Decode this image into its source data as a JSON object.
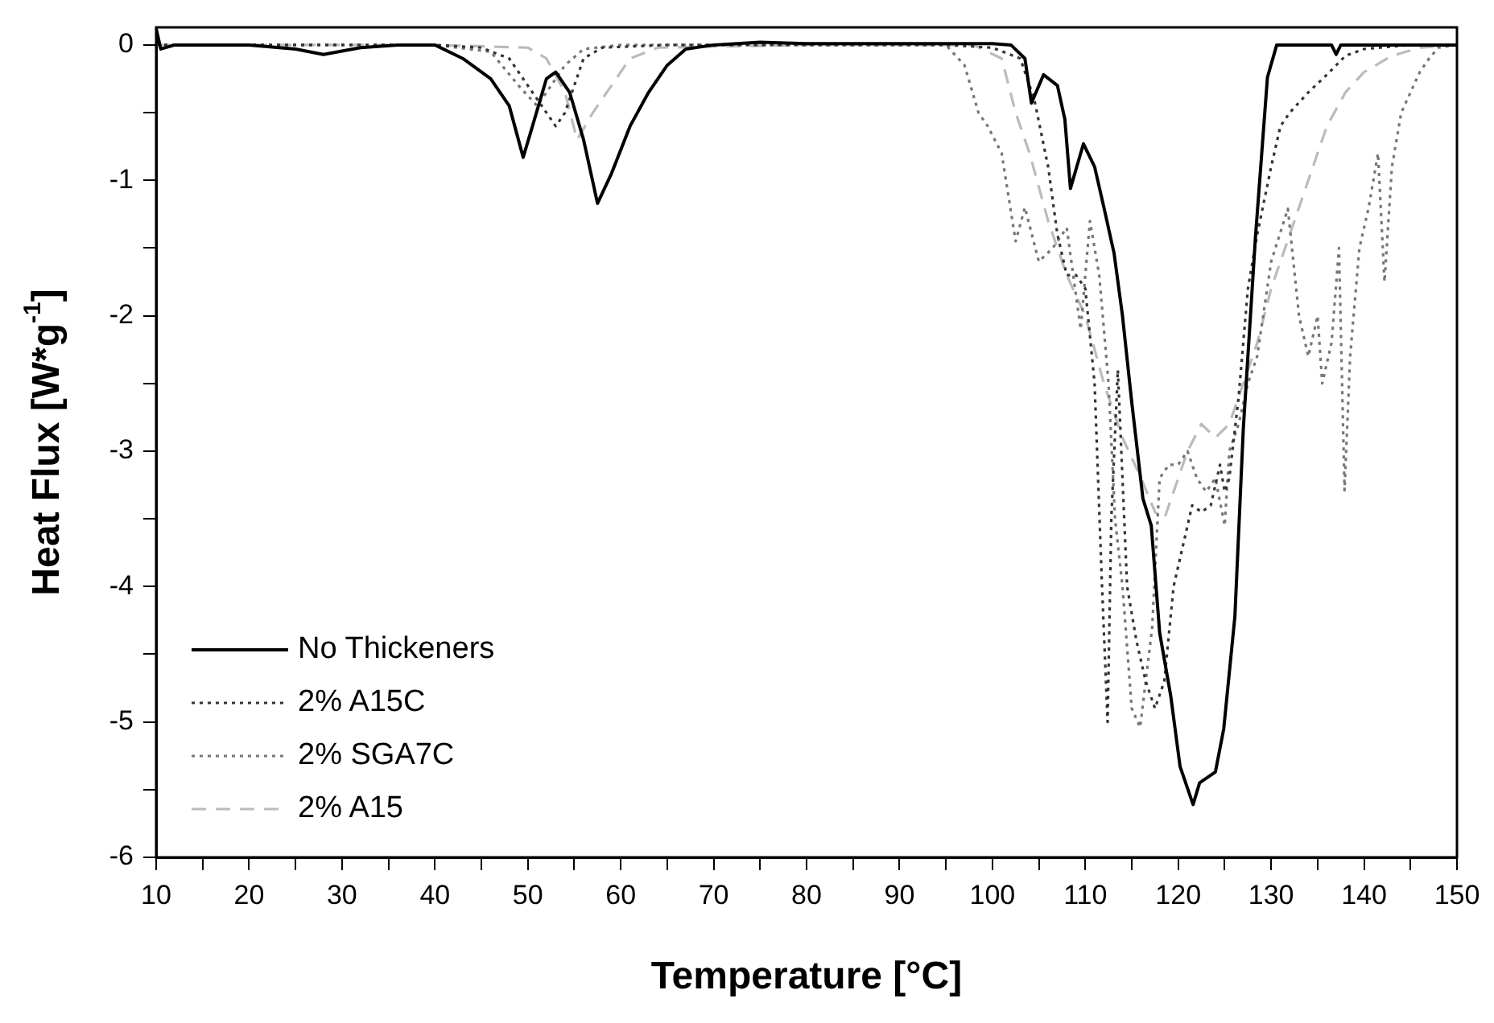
{
  "chart_data": {
    "type": "line",
    "xlabel": "Temperature [°C]",
    "ylabel": "Heat Flux [W*g$^{-1}$]",
    "xlim": [
      10,
      150
    ],
    "ylim": [
      -6,
      0.13
    ],
    "xticks": [
      10,
      {
        "value": 15,
        "label": null
      },
      20,
      {
        "value": 25,
        "label": null
      },
      30,
      {
        "value": 35,
        "label": null
      },
      40,
      {
        "value": 45,
        "label": null
      },
      50,
      {
        "value": 55,
        "label": null
      },
      60,
      {
        "value": 65,
        "label": null
      },
      70,
      {
        "value": 75,
        "label": null
      },
      80,
      {
        "value": 85,
        "label": null
      },
      90,
      {
        "value": 95,
        "label": null
      },
      100,
      {
        "value": 105,
        "label": null
      },
      110,
      {
        "value": 115,
        "label": null
      },
      120,
      {
        "value": 125,
        "label": null
      },
      130,
      {
        "value": 135,
        "label": null
      },
      140,
      {
        "value": 145,
        "label": null
      },
      150
    ],
    "yticks": [
      -6,
      {
        "value": -5.5,
        "label": null
      },
      -5,
      {
        "value": -4.5,
        "label": null
      },
      -4,
      {
        "value": -3.5,
        "label": null
      },
      -3,
      {
        "value": -2.5,
        "label": null
      },
      -2,
      {
        "value": -1.5,
        "label": null
      },
      -1,
      {
        "value": -0.5,
        "label": null
      },
      0
    ],
    "legend": "bottom left",
    "marker": "none",
    "grid": false,
    "series": [
      {
        "name": "No Thickeners",
        "color": "#000000",
        "line_style": "solid",
        "x": [
          10,
          10.5,
          12,
          15,
          20,
          25,
          28,
          32,
          36,
          40,
          43,
          46,
          48,
          49.5,
          50.5,
          52,
          53,
          54.5,
          56,
          57.5,
          59,
          61,
          63,
          65,
          67,
          70,
          75,
          80,
          90,
          100,
          102,
          103.5,
          104.2,
          105.5,
          107,
          107.8,
          108.4,
          109.8,
          111,
          112,
          113.1,
          114,
          115,
          116.2,
          117.1,
          118,
          119.2,
          120.2,
          121.6,
          122.3,
          124,
          124.9,
          126.1,
          127,
          128.3,
          129.6,
          130.6,
          133,
          136.5,
          137,
          137.5,
          140,
          145,
          150
        ],
        "values": [
          0.12,
          -0.03,
          0,
          0,
          0,
          -0.03,
          -0.07,
          -0.02,
          0,
          0,
          -0.1,
          -0.25,
          -0.45,
          -0.83,
          -0.6,
          -0.25,
          -0.2,
          -0.35,
          -0.7,
          -1.17,
          -0.95,
          -0.6,
          -0.35,
          -0.15,
          -0.03,
          0,
          0.02,
          0.01,
          0.01,
          0.01,
          0,
          -0.1,
          -0.43,
          -0.22,
          -0.3,
          -0.55,
          -1.06,
          -0.73,
          -0.9,
          -1.2,
          -1.54,
          -2.0,
          -2.64,
          -3.35,
          -3.55,
          -4.34,
          -4.81,
          -5.33,
          -5.61,
          -5.45,
          -5.37,
          -5.05,
          -4.22,
          -2.84,
          -1.43,
          -0.24,
          0,
          0,
          0,
          -0.07,
          0,
          0,
          0,
          0
        ]
      },
      {
        "name": "2% A15C",
        "color": "#333333",
        "line_style": "dotted",
        "x": [
          10,
          20,
          30,
          40,
          45,
          48,
          50,
          52,
          53,
          54,
          55,
          56,
          58,
          65,
          80,
          95,
          100,
          103,
          104.5,
          106,
          107,
          108,
          109,
          110,
          111,
          111.8,
          112.4,
          112.8,
          113.5,
          114.5,
          115.5,
          116.5,
          117.5,
          118.5,
          119.5,
          120.5,
          121.5,
          122.5,
          123.5,
          124.5,
          125,
          125.5,
          126.5,
          127.5,
          128.5,
          130,
          131,
          132,
          134,
          136,
          138,
          140,
          145,
          150
        ],
        "values": [
          0,
          0,
          0,
          0,
          -0.02,
          -0.1,
          -0.3,
          -0.5,
          -0.6,
          -0.5,
          -0.3,
          -0.1,
          -0.02,
          0,
          0,
          0,
          -0.02,
          -0.1,
          -0.4,
          -0.9,
          -1.4,
          -1.7,
          -1.7,
          -1.8,
          -2.5,
          -4.0,
          -5.0,
          -3.5,
          -2.4,
          -4.0,
          -4.4,
          -4.7,
          -4.9,
          -4.7,
          -4.0,
          -3.7,
          -3.4,
          -3.45,
          -3.4,
          -3.1,
          -3.3,
          -3.2,
          -2.6,
          -1.8,
          -1.4,
          -0.9,
          -0.6,
          -0.5,
          -0.35,
          -0.22,
          -0.08,
          -0.03,
          0,
          0
        ]
      },
      {
        "name": "2% SGA7C",
        "color": "#777777",
        "line_style": "dotted",
        "x": [
          10,
          20,
          30,
          40,
          46,
          49,
          51,
          52.5,
          54,
          56,
          60,
          80,
          95,
          97,
          98.5,
          99.5,
          101,
          102.5,
          103.5,
          105,
          106.5,
          108,
          109.5,
          110.5,
          111.5,
          112.5,
          113.2,
          114,
          115,
          115.9,
          116.5,
          117.2,
          118,
          119,
          120,
          121,
          122,
          123,
          124,
          125,
          125.5,
          126.5,
          127.5,
          128.5,
          130,
          131.8,
          133,
          134,
          135,
          135.5,
          136.5,
          137.3,
          137.9,
          138.5,
          139.5,
          140.5,
          141.5,
          142.2,
          143,
          144,
          145,
          146,
          147,
          148,
          150
        ],
        "values": [
          0,
          0,
          0,
          0,
          -0.05,
          -0.3,
          -0.45,
          -0.3,
          -0.15,
          -0.03,
          0,
          0,
          0,
          -0.15,
          -0.5,
          -0.6,
          -0.8,
          -1.45,
          -1.2,
          -1.6,
          -1.5,
          -1.35,
          -2.1,
          -1.3,
          -1.7,
          -2.5,
          -3.5,
          -4.0,
          -4.9,
          -5.04,
          -4.7,
          -4.3,
          -3.2,
          -3.1,
          -3.1,
          -3.0,
          -3.2,
          -3.3,
          -3.2,
          -3.55,
          -3.0,
          -2.8,
          -2.5,
          -2.3,
          -1.6,
          -1.21,
          -2.0,
          -2.3,
          -2.0,
          -2.5,
          -2.2,
          -1.5,
          -3.29,
          -2.3,
          -1.5,
          -1.2,
          -0.8,
          -1.75,
          -0.9,
          -0.5,
          -0.35,
          -0.2,
          -0.1,
          -0.02,
          0
        ]
      },
      {
        "name": "2% A15",
        "color": "#bbbbbb",
        "line_style": "dashed",
        "x": [
          10,
          20,
          30,
          40,
          50,
          52,
          54,
          55.3,
          57,
          59,
          61,
          64,
          80,
          98,
          101,
          102.5,
          104,
          106,
          108,
          110,
          112,
          114,
          116,
          117.5,
          118.5,
          119.5,
          121,
          122.5,
          124,
          125.5,
          127,
          128.5,
          130,
          132,
          134,
          136,
          138,
          140,
          143,
          146,
          150
        ],
        "values": [
          0,
          0,
          0,
          0,
          -0.02,
          -0.1,
          -0.35,
          -0.7,
          -0.5,
          -0.3,
          -0.1,
          -0.02,
          0,
          0,
          -0.1,
          -0.5,
          -0.8,
          -1.3,
          -1.7,
          -2.0,
          -2.5,
          -2.9,
          -3.2,
          -3.45,
          -3.5,
          -3.3,
          -3.0,
          -2.8,
          -2.9,
          -2.8,
          -2.5,
          -2.2,
          -1.8,
          -1.4,
          -1.0,
          -0.6,
          -0.35,
          -0.2,
          -0.08,
          -0.02,
          0
        ]
      }
    ]
  }
}
